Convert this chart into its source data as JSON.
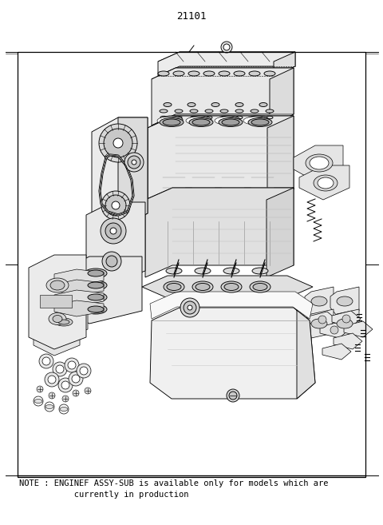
{
  "title_number": "21101",
  "note_text_line1": "NOTE : ENGINEF ASSY-SUB is available only for models which are",
  "note_text_line2": "           currently in production",
  "background_color": "#ffffff",
  "border_color": "#000000",
  "text_color": "#000000",
  "title_fontsize": 9,
  "note_fontsize": 7.5,
  "fig_width": 4.8,
  "fig_height": 6.57,
  "dpi": 100
}
